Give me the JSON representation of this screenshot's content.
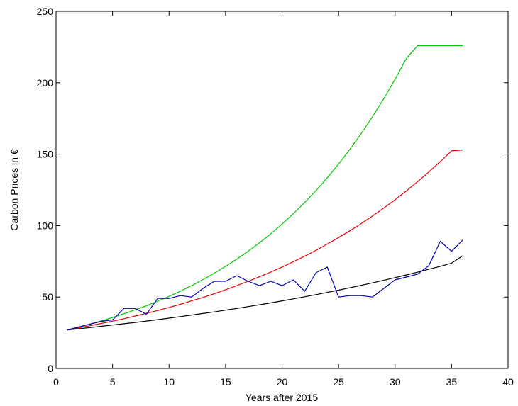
{
  "chart_data": {
    "type": "line",
    "title": "",
    "xlabel": "Years after 2015",
    "ylabel": "Carbon Prices in €",
    "xlim": [
      0,
      40
    ],
    "ylim": [
      0,
      250
    ],
    "xticks": [
      0,
      5,
      10,
      15,
      20,
      25,
      30,
      35,
      40
    ],
    "yticks": [
      0,
      50,
      100,
      150,
      200,
      250
    ],
    "grid": false,
    "legend": "none",
    "series": [
      {
        "color": "#00c800",
        "x": [
          1,
          2,
          3,
          4,
          5,
          6,
          7,
          8,
          9,
          10,
          11,
          12,
          13,
          14,
          15,
          16,
          17,
          18,
          19,
          20,
          21,
          22,
          23,
          24,
          25,
          26,
          27,
          28,
          29,
          30,
          31,
          32,
          33,
          34,
          35,
          36
        ],
        "y": [
          27,
          29,
          31.1,
          33.3,
          35.7,
          38.3,
          41.0,
          43.9,
          47.1,
          50.5,
          54.1,
          58.0,
          62.2,
          66.7,
          71.5,
          76.6,
          82.1,
          88.0,
          94.3,
          101.1,
          108.4,
          116.2,
          124.5,
          133.5,
          143.1,
          153.4,
          164.4,
          176.2,
          188.9,
          202.5,
          217.1,
          226,
          226,
          226,
          226,
          226
        ]
      },
      {
        "color": "#e60000",
        "x": [
          1,
          2,
          3,
          4,
          5,
          6,
          7,
          8,
          9,
          10,
          11,
          12,
          13,
          14,
          15,
          16,
          17,
          18,
          19,
          20,
          21,
          22,
          23,
          24,
          25,
          26,
          27,
          28,
          29,
          30,
          31,
          32,
          33,
          34,
          35,
          36
        ],
        "y": [
          27,
          28.4,
          29.9,
          31.5,
          33.1,
          34.8,
          36.7,
          38.6,
          40.6,
          42.7,
          44.9,
          47.3,
          49.7,
          52.3,
          55.1,
          58.0,
          61.0,
          64.2,
          67.5,
          71.0,
          74.7,
          78.6,
          82.7,
          87.1,
          91.6,
          96.4,
          101.4,
          106.7,
          112.3,
          118.1,
          124.3,
          130.8,
          137.6,
          144.8,
          152.3,
          153
        ]
      },
      {
        "color": "#000000",
        "x": [
          1,
          2,
          3,
          4,
          5,
          6,
          7,
          8,
          9,
          10,
          11,
          12,
          13,
          14,
          15,
          16,
          17,
          18,
          19,
          20,
          21,
          22,
          23,
          24,
          25,
          26,
          27,
          28,
          29,
          30,
          31,
          32,
          33,
          34,
          35,
          36
        ],
        "y": [
          27,
          27.8,
          28.6,
          29.5,
          30.4,
          31.3,
          32.2,
          33.2,
          34.2,
          35.2,
          36.3,
          37.4,
          38.5,
          39.6,
          40.8,
          42.0,
          43.3,
          44.6,
          45.9,
          47.3,
          48.7,
          50.2,
          51.7,
          53.2,
          54.8,
          56.5,
          58.2,
          59.9,
          61.7,
          63.6,
          65.5,
          67.4,
          69.5,
          71.5,
          73.7,
          79
        ]
      },
      {
        "color": "#0000b4",
        "x": [
          1,
          2,
          3,
          4,
          5,
          6,
          7,
          8,
          9,
          10,
          11,
          12,
          13,
          14,
          15,
          16,
          17,
          18,
          19,
          20,
          21,
          22,
          23,
          24,
          25,
          26,
          27,
          28,
          29,
          30,
          31,
          32,
          33,
          34,
          35,
          36
        ],
        "y": [
          27,
          29,
          31,
          33,
          34,
          42,
          42,
          38,
          49,
          49,
          51,
          50,
          56,
          61,
          61,
          65,
          61,
          58,
          61,
          58,
          62,
          54,
          67,
          71,
          50,
          51,
          51,
          50,
          56,
          62,
          64,
          66,
          72,
          89,
          82,
          90
        ]
      }
    ]
  }
}
